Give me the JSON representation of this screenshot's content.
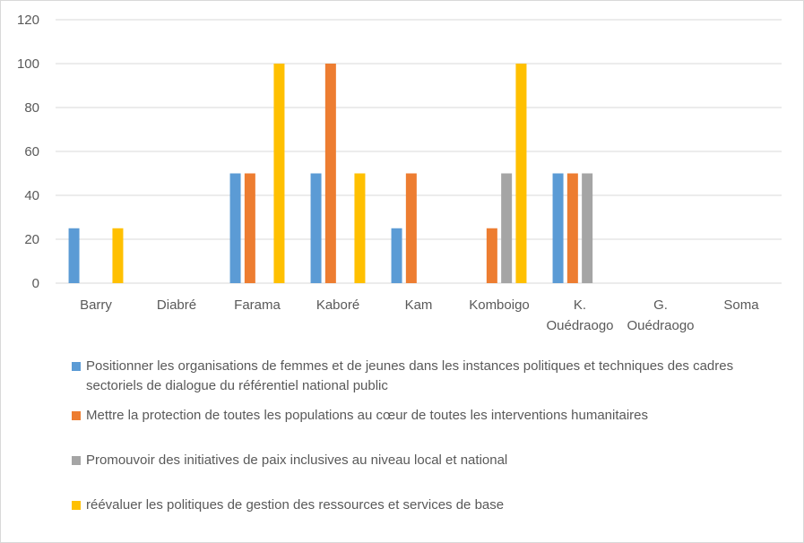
{
  "chart_data": {
    "type": "bar",
    "categories": [
      "Barry",
      "Diabré",
      "Farama",
      "Kaboré",
      "Kam",
      "Komboigo",
      "K. Ouédraogo",
      "G. Ouédraogo",
      "Soma"
    ],
    "category_lines": [
      [
        "Barry"
      ],
      [
        "Diabré"
      ],
      [
        "Farama"
      ],
      [
        "Kaboré"
      ],
      [
        "Kam"
      ],
      [
        "Komboigo"
      ],
      [
        "K.",
        "Ouédraogo"
      ],
      [
        "G.",
        "Ouédraogo"
      ],
      [
        "Soma"
      ]
    ],
    "series": [
      {
        "name": "Positionner les organisations de femmes et de jeunes dans les instances politiques et techniques des cadres sectoriels de dialogue du référentiel national public",
        "color": "#5b9bd5",
        "values": [
          25,
          0,
          50,
          50,
          25,
          0,
          50,
          0,
          0
        ]
      },
      {
        "name": "Mettre la protection de toutes les populations au cœur de toutes les interventions humanitaires",
        "color": "#ed7d31",
        "values": [
          0,
          0,
          50,
          100,
          50,
          25,
          50,
          0,
          0
        ]
      },
      {
        "name": "Promouvoir des initiatives de paix inclusives au niveau local et national",
        "color": "#a5a5a5",
        "values": [
          0,
          0,
          0,
          0,
          0,
          50,
          50,
          0,
          0
        ]
      },
      {
        "name": "réévaluer les politiques de gestion des ressources et services de base",
        "color": "#ffc000",
        "values": [
          25,
          0,
          100,
          50,
          0,
          100,
          0,
          0,
          0
        ]
      }
    ],
    "ylim": [
      0,
      120
    ],
    "yticks": [
      0,
      20,
      40,
      60,
      80,
      100,
      120
    ],
    "grid": true,
    "legend_position": "bottom",
    "title": "",
    "xlabel": "",
    "ylabel": ""
  }
}
